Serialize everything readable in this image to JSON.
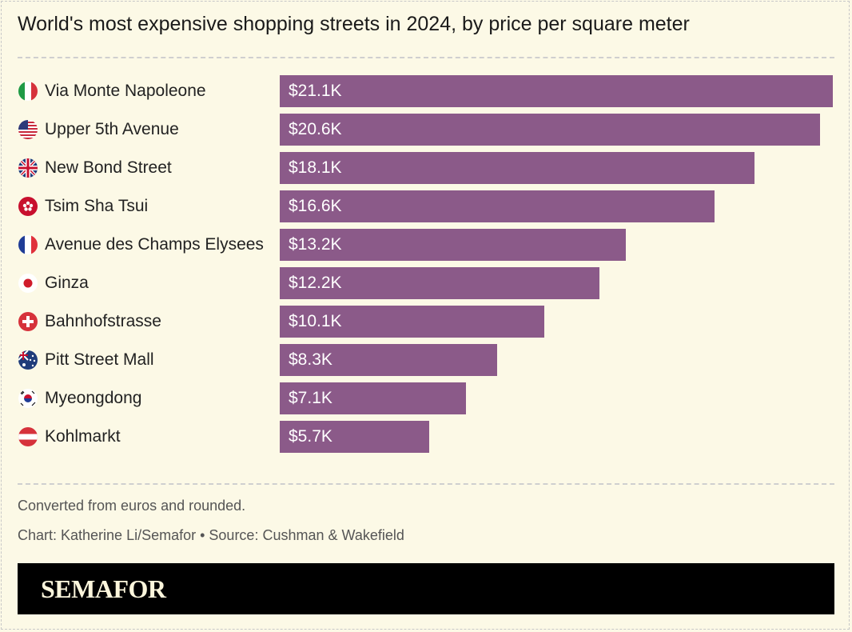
{
  "chart_data": {
    "type": "bar",
    "orientation": "horizontal",
    "title": "World's most expensive shopping streets in 2024, by price per square meter",
    "categories": [
      "Via Monte Napoleone",
      "Upper 5th Avenue",
      "New Bond Street",
      "Tsim Sha Tsui",
      "Avenue des Champs Elysees",
      "Ginza",
      "Bahnhofstrasse",
      "Pitt Street Mall",
      "Myeongdong",
      "Kohlmarkt"
    ],
    "flags": [
      "italy-flag",
      "usa-flag",
      "uk-flag",
      "hong-kong-flag",
      "france-flag",
      "japan-flag",
      "switzerland-flag",
      "australia-flag",
      "south-korea-flag",
      "austria-flag"
    ],
    "values": [
      21.1,
      20.6,
      18.1,
      16.6,
      13.2,
      12.2,
      10.1,
      8.3,
      7.1,
      5.7
    ],
    "data_labels": [
      "$21.1K",
      "$20.6K",
      "$18.1K",
      "$16.6K",
      "$13.2K",
      "$12.2K",
      "$10.1K",
      "$8.3K",
      "$7.1K",
      "$5.7K"
    ],
    "unit": "thousand USD per square meter",
    "bar_color": "#8b5a89",
    "grid": false
  },
  "notes": {
    "note": "Converted from euros and rounded.",
    "credit": "Chart: Katherine Li/Semafor • Source: Cushman & Wakefield"
  },
  "brand": {
    "logo": "SEMAFOR"
  },
  "colors": {
    "background": "#fcf9e6",
    "bar": "#8b5a89",
    "footer": "#000000"
  }
}
